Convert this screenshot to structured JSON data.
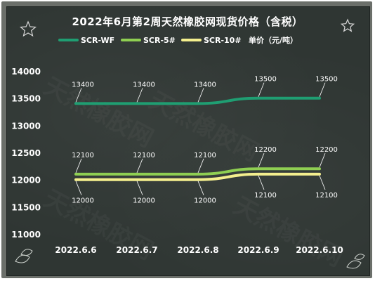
{
  "chart_data": {
    "type": "line",
    "title": "2022年6月第2周天然橡胶网现货价格（含税）",
    "categories": [
      "2022.6.6",
      "2022.6.7",
      "2022.6.8",
      "2022.6.9",
      "2022.6.10"
    ],
    "series": [
      {
        "name": "SCR-WF",
        "values": [
          13400,
          13400,
          13400,
          13500,
          13500
        ],
        "color": "#1f9e72"
      },
      {
        "name": "SCR-5#",
        "values": [
          12100,
          12100,
          12100,
          12200,
          12200
        ],
        "color": "#8fcf52"
      },
      {
        "name": "SCR-10#",
        "values": [
          12000,
          12000,
          12000,
          12100,
          12100
        ],
        "color": "#f4ef8e"
      }
    ],
    "unit": "单价（元/吨）",
    "y_ticks": [
      "11000",
      "11500",
      "12000",
      "12500",
      "13000",
      "13500",
      "14000"
    ],
    "ylim": [
      11000,
      14000
    ],
    "grid": false,
    "legend_position": "top"
  },
  "watermark": "天然橡胶网"
}
